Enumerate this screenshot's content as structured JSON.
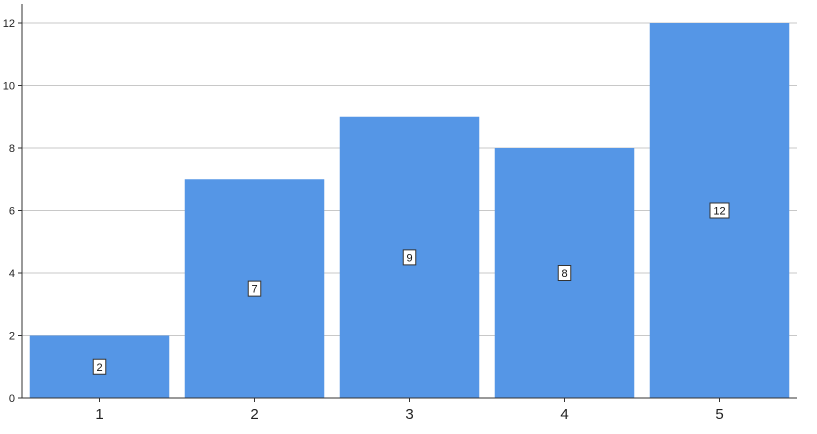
{
  "chart_data": {
    "type": "bar",
    "categories": [
      "1",
      "2",
      "3",
      "4",
      "5"
    ],
    "values": [
      2,
      7,
      9,
      8,
      12
    ],
    "data_labels": [
      "2",
      "7",
      "9",
      "8",
      "12"
    ],
    "y_ticks": [
      "0",
      "2",
      "4",
      "6",
      "8",
      "10",
      "12"
    ],
    "ylim": [
      0,
      12
    ],
    "grid": true,
    "bar_color": "#5596e6",
    "title": "",
    "xlabel": "",
    "ylabel": ""
  }
}
